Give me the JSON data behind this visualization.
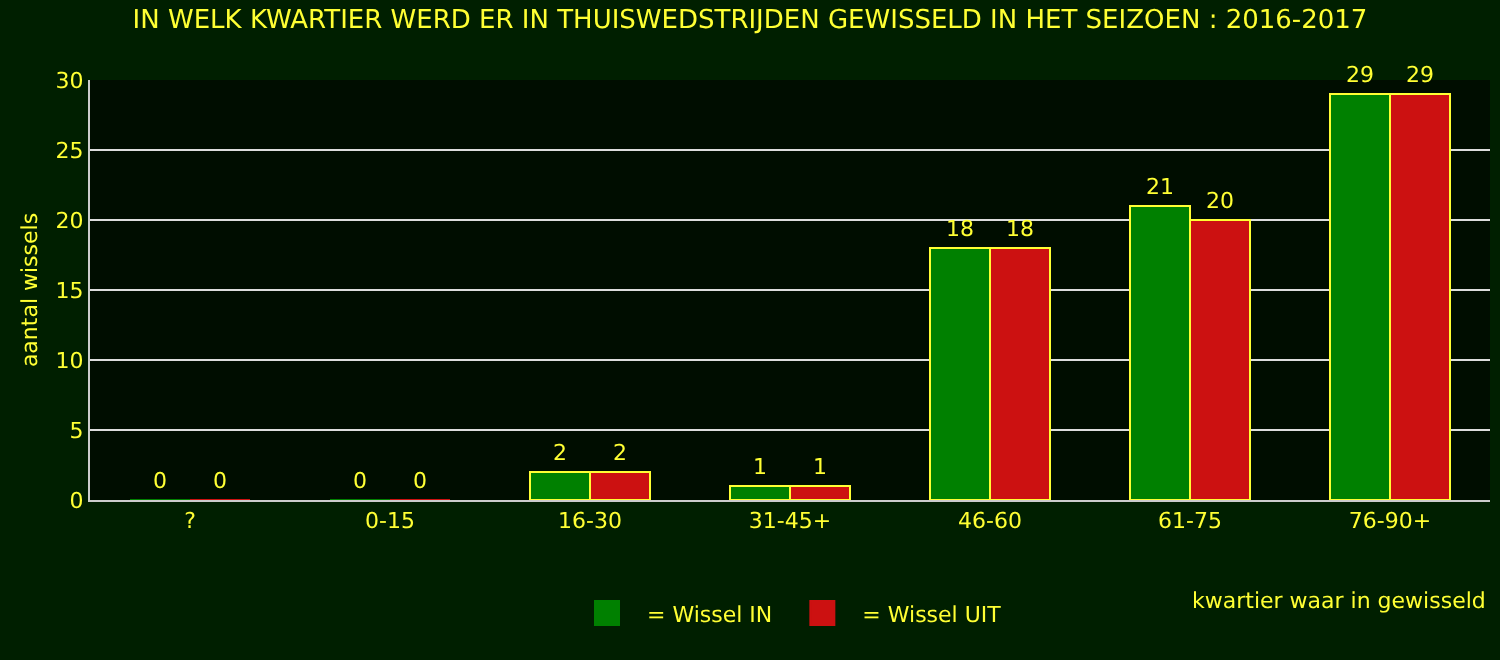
{
  "chart_data": {
    "type": "bar",
    "title": "IN WELK KWARTIER WERD ER IN THUISWEDSTRIJDEN GEWISSELD IN HET SEIZOEN : 2016-2017",
    "xlabel": "kwartier waar in gewisseld",
    "ylabel": "aantal wissels",
    "categories": [
      "?",
      "0-15",
      "16-30",
      "31-45+",
      "46-60",
      "61-75",
      "76-90+"
    ],
    "series": [
      {
        "name": "= Wissel IN",
        "color": "#008000",
        "values": [
          0,
          0,
          2,
          1,
          18,
          21,
          29
        ]
      },
      {
        "name": "= Wissel UIT",
        "color": "#cc1111",
        "values": [
          0,
          0,
          2,
          1,
          18,
          20,
          29
        ]
      }
    ],
    "ylim": [
      0,
      30
    ],
    "yticks": [
      0,
      5,
      10,
      15,
      20,
      25,
      30
    ],
    "grid": "y",
    "legend": "bottom",
    "data_labels": true
  }
}
